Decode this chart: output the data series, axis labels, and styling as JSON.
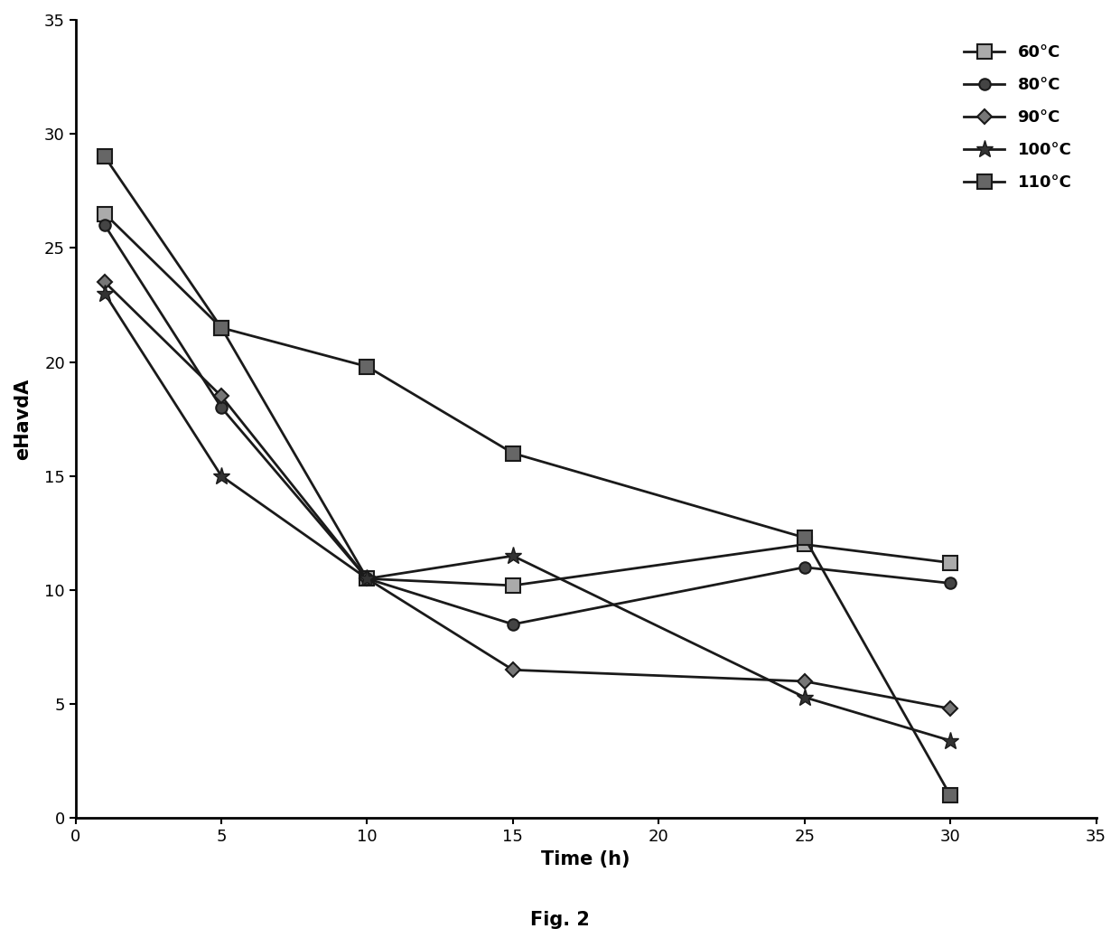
{
  "title": "Fig. 2",
  "xlabel": "Time (h)",
  "ylabel": "eHavdA",
  "xlim": [
    0,
    35
  ],
  "ylim": [
    0,
    35
  ],
  "xticks": [
    0,
    5,
    10,
    15,
    20,
    25,
    30,
    35
  ],
  "yticks": [
    0,
    5,
    10,
    15,
    20,
    25,
    30,
    35
  ],
  "series": [
    {
      "label": "60°C",
      "x": [
        1,
        5,
        10,
        15,
        25,
        30
      ],
      "y": [
        26.5,
        21.5,
        10.5,
        10.2,
        12.0,
        11.2
      ]
    },
    {
      "label": "80°C",
      "x": [
        1,
        5,
        10,
        15,
        25,
        30
      ],
      "y": [
        26.0,
        18.0,
        10.5,
        8.5,
        11.0,
        10.3
      ]
    },
    {
      "label": "90°C",
      "x": [
        1,
        5,
        10,
        15,
        25,
        30
      ],
      "y": [
        23.5,
        18.5,
        10.5,
        6.5,
        6.0,
        4.8
      ]
    },
    {
      "label": "100°C",
      "x": [
        1,
        5,
        10,
        15,
        25,
        30
      ],
      "y": [
        23.0,
        15.0,
        10.5,
        11.5,
        5.3,
        3.4
      ]
    },
    {
      "label": "110°C",
      "x": [
        1,
        5,
        10,
        15,
        25,
        30
      ],
      "y": [
        29.0,
        21.5,
        19.8,
        16.0,
        12.3,
        1.0
      ]
    }
  ],
  "background_color": "#ffffff",
  "legend_fontsize": 13,
  "axis_label_fontsize": 15,
  "tick_fontsize": 13,
  "title_fontsize": 15,
  "linewidth": 2.0,
  "legend_labelspacing": 1.0,
  "legend_handlelength": 2.5
}
